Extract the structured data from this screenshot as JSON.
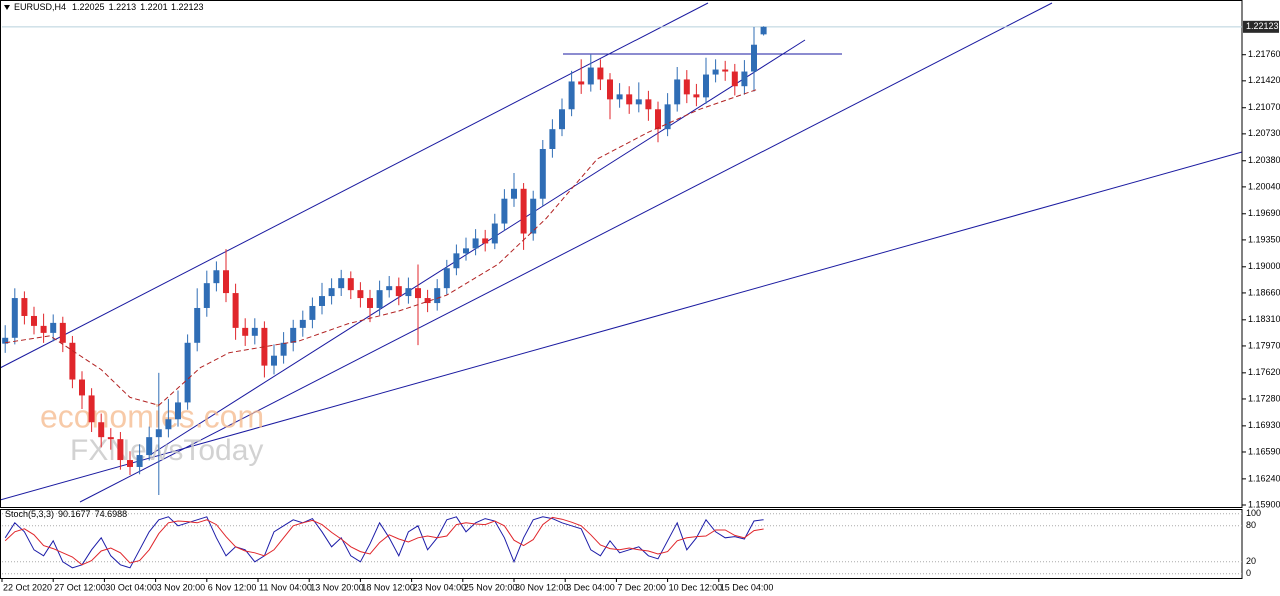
{
  "chart_data": {
    "type": "candlestick",
    "symbol": "EURUSD,H4",
    "up_color": "#2f6db5",
    "down_color": "#e0262b",
    "x": [
      1,
      4,
      7,
      10,
      13,
      16,
      19,
      22,
      25,
      28,
      31,
      34,
      37,
      40,
      43,
      46,
      49,
      52,
      55,
      58,
      61,
      64,
      67,
      70,
      73,
      76,
      79,
      82,
      85,
      88,
      91,
      94,
      97,
      100,
      103,
      106,
      109,
      112,
      115,
      118,
      121,
      124,
      127,
      130,
      133,
      136,
      139,
      142,
      145,
      148,
      151,
      154,
      157,
      160,
      163,
      166,
      169,
      172,
      175,
      178,
      181,
      184,
      187,
      190,
      193,
      196,
      199,
      202,
      205,
      208,
      211,
      214,
      217,
      220,
      223,
      226,
      229,
      232,
      235,
      238
    ],
    "open": [
      1.18,
      1.18076,
      1.18593,
      1.1836,
      1.18231,
      1.1814,
      1.1827,
      1.18011,
      1.17533,
      1.17326,
      1.16977,
      1.16783,
      1.16757,
      1.16485,
      1.16395,
      1.1655,
      1.16783,
      1.16886,
      1.17016,
      1.17235,
      1.18011,
      1.18464,
      1.18787,
      1.18955,
      1.18658,
      1.18205,
      1.18102,
      1.18205,
      1.17714,
      1.17843,
      1.18011,
      1.18205,
      1.18309,
      1.1849,
      1.18619,
      1.18722,
      1.18852,
      1.18696,
      1.18593,
      1.18464,
      1.18696,
      1.18748,
      1.18619,
      1.18722,
      1.18593,
      1.18528,
      1.18722,
      1.18981,
      1.19175,
      1.1924,
      1.19369,
      1.19304,
      1.19563,
      1.19886,
      1.20015,
      1.19433,
      1.19886,
      1.20533,
      1.20791,
      1.2105,
      1.21412,
      1.21373,
      1.21593,
      1.21438,
      1.21179,
      1.21244,
      1.21114,
      1.21179,
      1.2105,
      1.20791,
      1.21114,
      1.21438,
      1.21244,
      1.21205,
      1.21502,
      1.21567,
      1.21541,
      1.2135,
      1.21541,
      1.22025
    ],
    "high": [
      1.1824,
      1.1872,
      1.1868,
      1.1848,
      1.1839,
      1.1838,
      1.1835,
      1.181,
      1.1764,
      1.1742,
      1.1709,
      1.169,
      1.1685,
      1.166,
      1.1669,
      1.1692,
      1.1762,
      1.1728,
      1.1739,
      1.1812,
      1.1872,
      1.1895,
      1.1907,
      1.1923,
      1.1878,
      1.1833,
      1.1833,
      1.1829,
      1.1799,
      1.1815,
      1.1831,
      1.1843,
      1.186,
      1.1879,
      1.1885,
      1.1896,
      1.1894,
      1.188,
      1.187,
      1.1882,
      1.1888,
      1.1886,
      1.1886,
      1.1903,
      1.187,
      1.1884,
      1.1909,
      1.1929,
      1.1938,
      1.1949,
      1.1948,
      1.1969,
      1.2001,
      1.2022,
      1.2009,
      1.1999,
      1.2065,
      1.2092,
      1.2119,
      1.2155,
      1.217,
      1.2176,
      1.217,
      1.2152,
      1.2139,
      1.2135,
      1.214,
      1.2129,
      1.2115,
      1.2126,
      1.216,
      1.2156,
      1.2138,
      1.2172,
      1.217,
      1.2168,
      1.2164,
      1.2169,
      1.2212,
      1.2213
    ],
    "low": [
      1.1788,
      1.1799,
      1.1825,
      1.1812,
      1.1801,
      1.1803,
      1.1789,
      1.1742,
      1.1715,
      1.1685,
      1.1665,
      1.1662,
      1.1636,
      1.1629,
      1.163,
      1.1648,
      1.1603,
      1.1678,
      1.1692,
      1.1714,
      1.179,
      1.1835,
      1.1868,
      1.1854,
      1.1805,
      1.1797,
      1.1799,
      1.1756,
      1.176,
      1.1774,
      1.179,
      1.1809,
      1.182,
      1.1838,
      1.1851,
      1.1862,
      1.1858,
      1.1847,
      1.1828,
      1.1837,
      1.186,
      1.185,
      1.1852,
      1.1798,
      1.1841,
      1.1843,
      1.1864,
      1.1889,
      1.1908,
      1.1915,
      1.192,
      1.1923,
      1.1947,
      1.1978,
      1.1922,
      1.1934,
      1.1979,
      1.2042,
      1.207,
      1.2096,
      1.2125,
      1.2128,
      1.213,
      1.2092,
      1.2107,
      1.2099,
      1.2101,
      1.209,
      1.2062,
      1.207,
      1.2102,
      1.2113,
      1.2109,
      1.2112,
      1.214,
      1.2142,
      1.2123,
      1.2124,
      1.21282,
      1.2201
    ],
    "close": [
      1.18076,
      1.18593,
      1.1836,
      1.18231,
      1.1814,
      1.1827,
      1.18011,
      1.17533,
      1.17326,
      1.16977,
      1.16783,
      1.16757,
      1.16485,
      1.16395,
      1.1655,
      1.16783,
      1.16886,
      1.17016,
      1.17235,
      1.18011,
      1.18464,
      1.18787,
      1.18955,
      1.18658,
      1.18205,
      1.18102,
      1.18205,
      1.17714,
      1.17843,
      1.18011,
      1.18205,
      1.18309,
      1.1849,
      1.18619,
      1.18722,
      1.18852,
      1.18696,
      1.18593,
      1.18464,
      1.18696,
      1.18748,
      1.18619,
      1.18722,
      1.18593,
      1.18528,
      1.18722,
      1.18981,
      1.19175,
      1.1924,
      1.19369,
      1.19304,
      1.19563,
      1.19886,
      1.20015,
      1.19433,
      1.19886,
      1.20533,
      1.20791,
      1.2105,
      1.21412,
      1.21373,
      1.21593,
      1.21438,
      1.21179,
      1.21244,
      1.21114,
      1.21179,
      1.2105,
      1.20791,
      1.21114,
      1.21438,
      1.21244,
      1.21205,
      1.21502,
      1.21567,
      1.21541,
      1.2135,
      1.21541,
      1.2189,
      1.22123
    ],
    "ma": {
      "color": "#b22222",
      "x": [
        1,
        15,
        31,
        40,
        49,
        62,
        71,
        93,
        108,
        124,
        139,
        155,
        170,
        186,
        202,
        218,
        236
      ],
      "values": [
        1.18011,
        1.18102,
        1.17662,
        1.173,
        1.17197,
        1.17688,
        1.17882,
        1.18037,
        1.18257,
        1.18425,
        1.18632,
        1.19033,
        1.19627,
        1.20403,
        1.20752,
        1.2105,
        1.21308
      ]
    },
    "xlim": [
      0,
      387.5
    ],
    "ylim": [
      1.15874,
      1.22472
    ],
    "xticks": [
      {
        "value": 0,
        "label": "22 Oct 2020"
      },
      {
        "value": 16,
        "label": "27 Oct 12:00"
      },
      {
        "value": 32,
        "label": "30 Oct 04:00"
      },
      {
        "value": 48,
        "label": "3 Nov 20:00"
      },
      {
        "value": 64,
        "label": "6 Nov 12:00"
      },
      {
        "value": 80,
        "label": "11 Nov 04:00"
      },
      {
        "value": 96,
        "label": "13 Nov 20:00"
      },
      {
        "value": 112,
        "label": "18 Nov 12:00"
      },
      {
        "value": 128,
        "label": "23 Nov 04:00"
      },
      {
        "value": 144,
        "label": "25 Nov 20:00"
      },
      {
        "value": 160,
        "label": "30 Nov 12:00"
      },
      {
        "value": 176,
        "label": "3 Dec 04:00"
      },
      {
        "value": 192,
        "label": "7 Dec 20:00"
      },
      {
        "value": 208,
        "label": "10 Dec 12:00"
      },
      {
        "value": 224,
        "label": "15 Dec 04:00"
      }
    ],
    "yticks": [
      {
        "value": 1.2176,
        "label": "1.21760"
      },
      {
        "value": 1.2142,
        "label": "1.21420"
      },
      {
        "value": 1.2107,
        "label": "1.21070"
      },
      {
        "value": 1.2073,
        "label": "1.20730"
      },
      {
        "value": 1.2038,
        "label": "1.20380"
      },
      {
        "value": 1.2004,
        "label": "1.20040"
      },
      {
        "value": 1.1969,
        "label": "1.19690"
      },
      {
        "value": 1.1935,
        "label": "1.19350"
      },
      {
        "value": 1.19,
        "label": "1.19000"
      },
      {
        "value": 1.1866,
        "label": "1.18660"
      },
      {
        "value": 1.1831,
        "label": "1.18310"
      },
      {
        "value": 1.1797,
        "label": "1.17970"
      },
      {
        "value": 1.1762,
        "label": "1.17620"
      },
      {
        "value": 1.1728,
        "label": "1.17280"
      },
      {
        "value": 1.1693,
        "label": "1.16930"
      },
      {
        "value": 1.1659,
        "label": "1.16590"
      },
      {
        "value": 1.1624,
        "label": "1.16240"
      },
      {
        "value": 1.159,
        "label": "1.15900"
      }
    ],
    "annotations": [
      "economies.com",
      "FXNewsToday"
    ],
    "indicator": {
      "name": "Stoch(5,3,3)",
      "ylim": [
        -7,
        108
      ],
      "yticks": [
        100,
        80,
        20,
        0
      ],
      "series": [
        {
          "color": "#1c1ca8",
          "values": [
            60,
            85,
            70,
            40,
            30,
            55,
            20,
            10,
            15,
            40,
            60,
            30,
            15,
            10,
            40,
            70,
            90,
            95,
            80,
            85,
            90,
            95,
            60,
            30,
            45,
            40,
            20,
            30,
            70,
            80,
            90,
            85,
            92,
            70,
            45,
            60,
            30,
            20,
            50,
            85,
            60,
            30,
            70,
            80,
            40,
            60,
            90,
            95,
            70,
            85,
            92,
            88,
            60,
            20,
            60,
            90,
            95,
            92,
            85,
            80,
            75,
            40,
            30,
            55,
            35,
            40,
            45,
            30,
            25,
            55,
            85,
            40,
            60,
            90,
            70,
            60,
            62,
            58,
            88,
            90.1677
          ]
        },
        {
          "color": "#e0262b",
          "values": [
            55,
            70,
            75,
            65,
            47,
            42,
            35,
            28,
            15,
            22,
            38,
            43,
            35,
            18,
            22,
            40,
            67,
            85,
            88,
            87,
            85,
            90,
            82,
            62,
            45,
            38,
            35,
            30,
            40,
            60,
            80,
            85,
            89,
            82,
            69,
            58,
            45,
            37,
            33,
            52,
            65,
            58,
            53,
            60,
            63,
            60,
            63,
            82,
            85,
            83,
            82,
            88,
            80,
            56,
            47,
            57,
            82,
            94,
            91,
            86,
            80,
            65,
            48,
            42,
            40,
            43,
            40,
            38,
            33,
            37,
            55,
            60,
            62,
            63,
            73,
            73,
            64,
            60,
            72,
            74.6988
          ]
        }
      ]
    }
  }
}
